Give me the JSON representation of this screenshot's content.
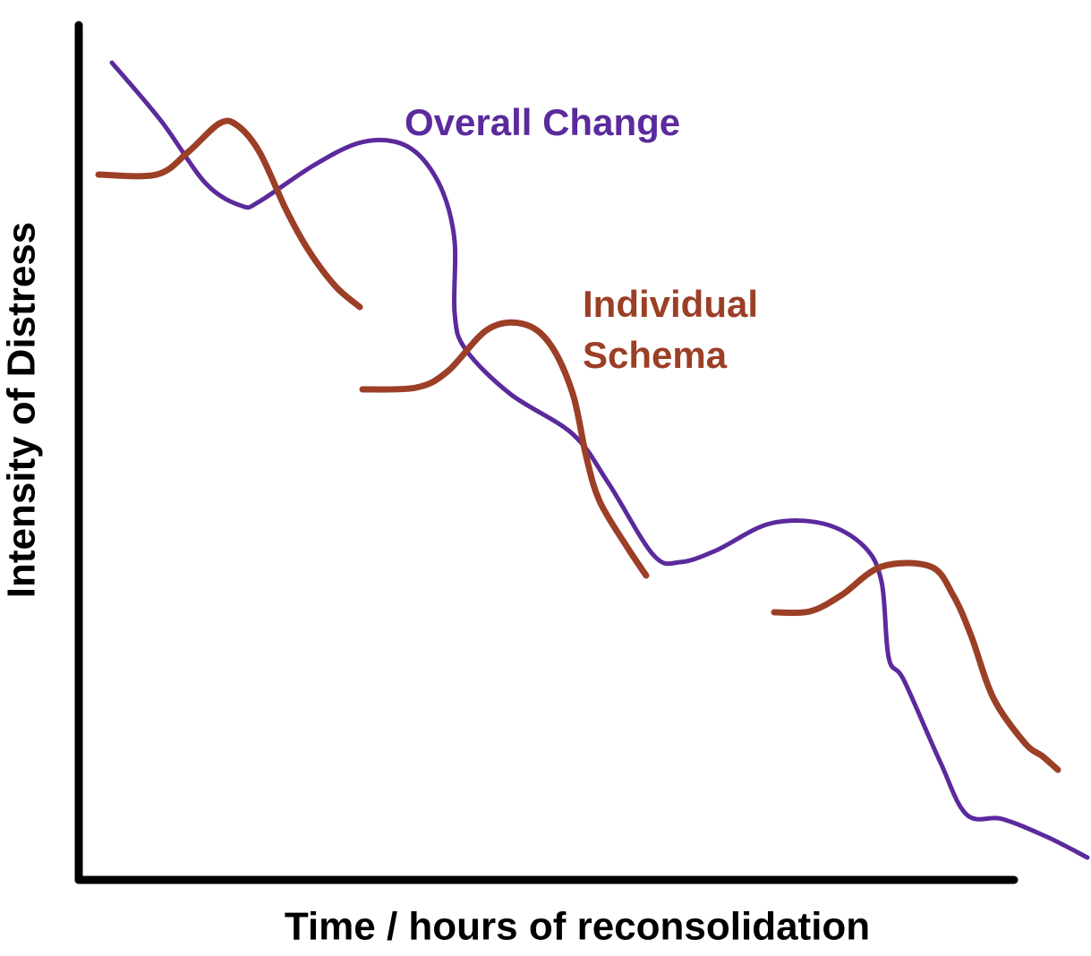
{
  "axes": {
    "y_label": "Intensity of Distress",
    "x_label": "Time / hours of reconsolidation"
  },
  "labels": {
    "overall": "Overall Change",
    "schema": [
      "Individual",
      "Schema"
    ]
  }
}
